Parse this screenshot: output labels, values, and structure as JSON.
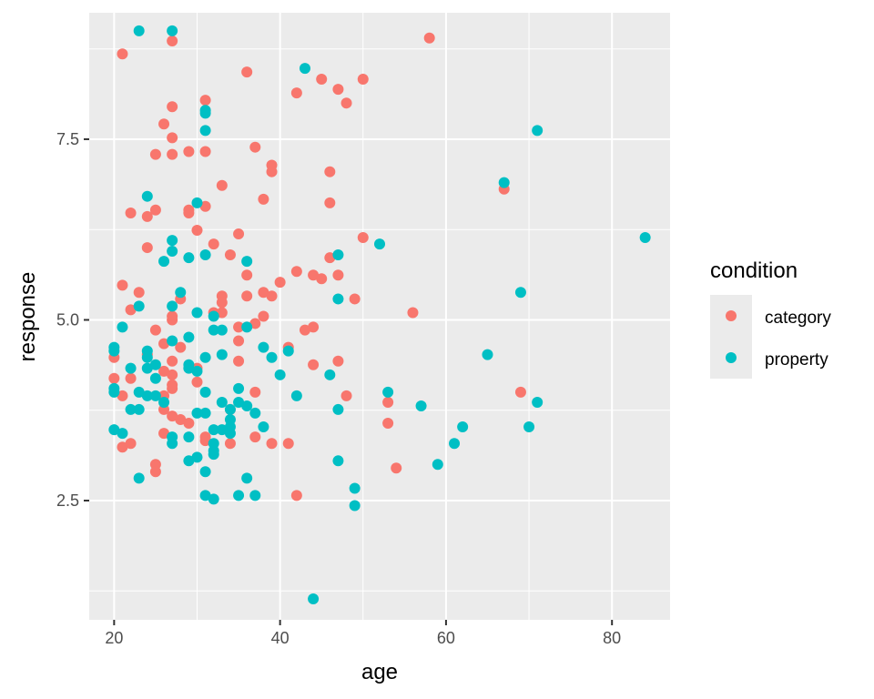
{
  "chart_data": {
    "type": "scatter",
    "xlabel": "age",
    "ylabel": "response",
    "xlim": [
      17,
      87
    ],
    "ylim": [
      0.85,
      9.25
    ],
    "x_ticks": [
      20,
      40,
      60,
      80
    ],
    "x_tick_labels": [
      "20",
      "40",
      "60",
      "80"
    ],
    "y_ticks": [
      2.5,
      5.0,
      7.5
    ],
    "y_tick_labels": [
      "2.5",
      "5.0",
      "7.5"
    ],
    "grid": true,
    "legend": {
      "title": "condition",
      "placement": "right"
    },
    "series": [
      {
        "name": "category",
        "color": "#F8766D",
        "points": [
          [
            21,
            8.68
          ],
          [
            27,
            8.86
          ],
          [
            58,
            8.9
          ],
          [
            36,
            8.43
          ],
          [
            45,
            8.33
          ],
          [
            50,
            8.33
          ],
          [
            47,
            8.19
          ],
          [
            42,
            8.14
          ],
          [
            31,
            8.04
          ],
          [
            48,
            8.0
          ],
          [
            27,
            7.95
          ],
          [
            26,
            7.71
          ],
          [
            27,
            7.52
          ],
          [
            37,
            7.39
          ],
          [
            25,
            7.29
          ],
          [
            27,
            7.29
          ],
          [
            29,
            7.33
          ],
          [
            31,
            7.33
          ],
          [
            39,
            7.14
          ],
          [
            39,
            7.05
          ],
          [
            46,
            7.05
          ],
          [
            33,
            6.86
          ],
          [
            67,
            6.81
          ],
          [
            38,
            6.67
          ],
          [
            46,
            6.62
          ],
          [
            31,
            6.57
          ],
          [
            25,
            6.52
          ],
          [
            29,
            6.52
          ],
          [
            22,
            6.48
          ],
          [
            29,
            6.48
          ],
          [
            24,
            6.43
          ],
          [
            30,
            6.24
          ],
          [
            35,
            6.19
          ],
          [
            50,
            6.14
          ],
          [
            32,
            6.05
          ],
          [
            24,
            6.0
          ],
          [
            34,
            5.9
          ],
          [
            46,
            5.86
          ],
          [
            42,
            5.67
          ],
          [
            36,
            5.62
          ],
          [
            44,
            5.62
          ],
          [
            47,
            5.62
          ],
          [
            45,
            5.57
          ],
          [
            40,
            5.52
          ],
          [
            21,
            5.48
          ],
          [
            23,
            5.38
          ],
          [
            36,
            5.33
          ],
          [
            33,
            5.33
          ],
          [
            38,
            5.38
          ],
          [
            39,
            5.33
          ],
          [
            49,
            5.29
          ],
          [
            28,
            5.29
          ],
          [
            33,
            5.24
          ],
          [
            22,
            5.14
          ],
          [
            33,
            5.1
          ],
          [
            32,
            5.1
          ],
          [
            56,
            5.1
          ],
          [
            38,
            5.05
          ],
          [
            27,
            5.05
          ],
          [
            27,
            5.0
          ],
          [
            37,
            4.95
          ],
          [
            35,
            4.9
          ],
          [
            44,
            4.9
          ],
          [
            25,
            4.86
          ],
          [
            43,
            4.86
          ],
          [
            35,
            4.71
          ],
          [
            26,
            4.67
          ],
          [
            28,
            4.62
          ],
          [
            41,
            4.62
          ],
          [
            24,
            4.52
          ],
          [
            20,
            4.48
          ],
          [
            35,
            4.43
          ],
          [
            27,
            4.43
          ],
          [
            47,
            4.43
          ],
          [
            44,
            4.38
          ],
          [
            30,
            4.33
          ],
          [
            26,
            4.29
          ],
          [
            20,
            4.19
          ],
          [
            22,
            4.19
          ],
          [
            27,
            4.24
          ],
          [
            30,
            4.14
          ],
          [
            27,
            4.1
          ],
          [
            27,
            4.05
          ],
          [
            37,
            4.0
          ],
          [
            21,
            3.95
          ],
          [
            26,
            3.95
          ],
          [
            48,
            3.95
          ],
          [
            53,
            3.86
          ],
          [
            26,
            3.76
          ],
          [
            34,
            3.76
          ],
          [
            27,
            3.67
          ],
          [
            28,
            3.62
          ],
          [
            29,
            3.57
          ],
          [
            53,
            3.57
          ],
          [
            26,
            3.43
          ],
          [
            31,
            3.38
          ],
          [
            37,
            3.38
          ],
          [
            31,
            3.33
          ],
          [
            34,
            3.29
          ],
          [
            22,
            3.29
          ],
          [
            21,
            3.24
          ],
          [
            39,
            3.29
          ],
          [
            41,
            3.29
          ],
          [
            25,
            3.0
          ],
          [
            25,
            2.9
          ],
          [
            54,
            2.95
          ],
          [
            42,
            2.57
          ],
          [
            69,
            4.0
          ]
        ]
      },
      {
        "name": "property",
        "color": "#00BFC4",
        "points": [
          [
            23,
            9.0
          ],
          [
            27,
            9.0
          ],
          [
            43,
            8.48
          ],
          [
            31,
            7.9
          ],
          [
            31,
            7.86
          ],
          [
            71,
            7.62
          ],
          [
            31,
            7.62
          ],
          [
            67,
            6.9
          ],
          [
            24,
            6.71
          ],
          [
            30,
            6.62
          ],
          [
            84,
            6.14
          ],
          [
            27,
            6.1
          ],
          [
            52,
            6.05
          ],
          [
            27,
            5.95
          ],
          [
            31,
            5.9
          ],
          [
            29,
            5.86
          ],
          [
            47,
            5.9
          ],
          [
            26,
            5.81
          ],
          [
            36,
            5.81
          ],
          [
            69,
            5.38
          ],
          [
            28,
            5.38
          ],
          [
            47,
            5.29
          ],
          [
            27,
            5.19
          ],
          [
            23,
            5.19
          ],
          [
            30,
            5.1
          ],
          [
            32,
            5.05
          ],
          [
            21,
            4.9
          ],
          [
            36,
            4.9
          ],
          [
            32,
            4.86
          ],
          [
            33,
            4.86
          ],
          [
            29,
            4.76
          ],
          [
            27,
            4.71
          ],
          [
            38,
            4.62
          ],
          [
            41,
            4.57
          ],
          [
            20,
            4.62
          ],
          [
            20,
            4.57
          ],
          [
            24,
            4.57
          ],
          [
            65,
            4.52
          ],
          [
            33,
            4.52
          ],
          [
            39,
            4.48
          ],
          [
            24,
            4.48
          ],
          [
            31,
            4.48
          ],
          [
            25,
            4.38
          ],
          [
            29,
            4.38
          ],
          [
            24,
            4.33
          ],
          [
            22,
            4.33
          ],
          [
            29,
            4.33
          ],
          [
            30,
            4.29
          ],
          [
            40,
            4.24
          ],
          [
            46,
            4.24
          ],
          [
            25,
            4.19
          ],
          [
            20,
            4.05
          ],
          [
            20,
            4.0
          ],
          [
            23,
            4.0
          ],
          [
            31,
            4.0
          ],
          [
            53,
            4.0
          ],
          [
            35,
            4.05
          ],
          [
            24,
            3.95
          ],
          [
            25,
            3.95
          ],
          [
            42,
            3.95
          ],
          [
            26,
            3.86
          ],
          [
            33,
            3.86
          ],
          [
            35,
            3.86
          ],
          [
            36,
            3.81
          ],
          [
            34,
            3.76
          ],
          [
            37,
            3.71
          ],
          [
            31,
            3.71
          ],
          [
            57,
            3.81
          ],
          [
            71,
            3.86
          ],
          [
            30,
            3.71
          ],
          [
            22,
            3.76
          ],
          [
            23,
            3.76
          ],
          [
            47,
            3.76
          ],
          [
            34,
            3.62
          ],
          [
            34,
            3.52
          ],
          [
            38,
            3.52
          ],
          [
            62,
            3.52
          ],
          [
            70,
            3.52
          ],
          [
            20,
            3.48
          ],
          [
            21,
            3.43
          ],
          [
            32,
            3.48
          ],
          [
            33,
            3.48
          ],
          [
            34,
            3.43
          ],
          [
            29,
            3.38
          ],
          [
            27,
            3.38
          ],
          [
            27,
            3.29
          ],
          [
            32,
            3.29
          ],
          [
            32,
            3.19
          ],
          [
            32,
            3.14
          ],
          [
            30,
            3.1
          ],
          [
            29,
            3.05
          ],
          [
            47,
            3.05
          ],
          [
            61,
            3.29
          ],
          [
            59,
            3.0
          ],
          [
            31,
            2.9
          ],
          [
            23,
            2.81
          ],
          [
            36,
            2.81
          ],
          [
            49,
            2.67
          ],
          [
            31,
            2.57
          ],
          [
            35,
            2.57
          ],
          [
            37,
            2.57
          ],
          [
            32,
            2.52
          ],
          [
            49,
            2.43
          ],
          [
            44,
            1.14
          ]
        ]
      }
    ]
  }
}
